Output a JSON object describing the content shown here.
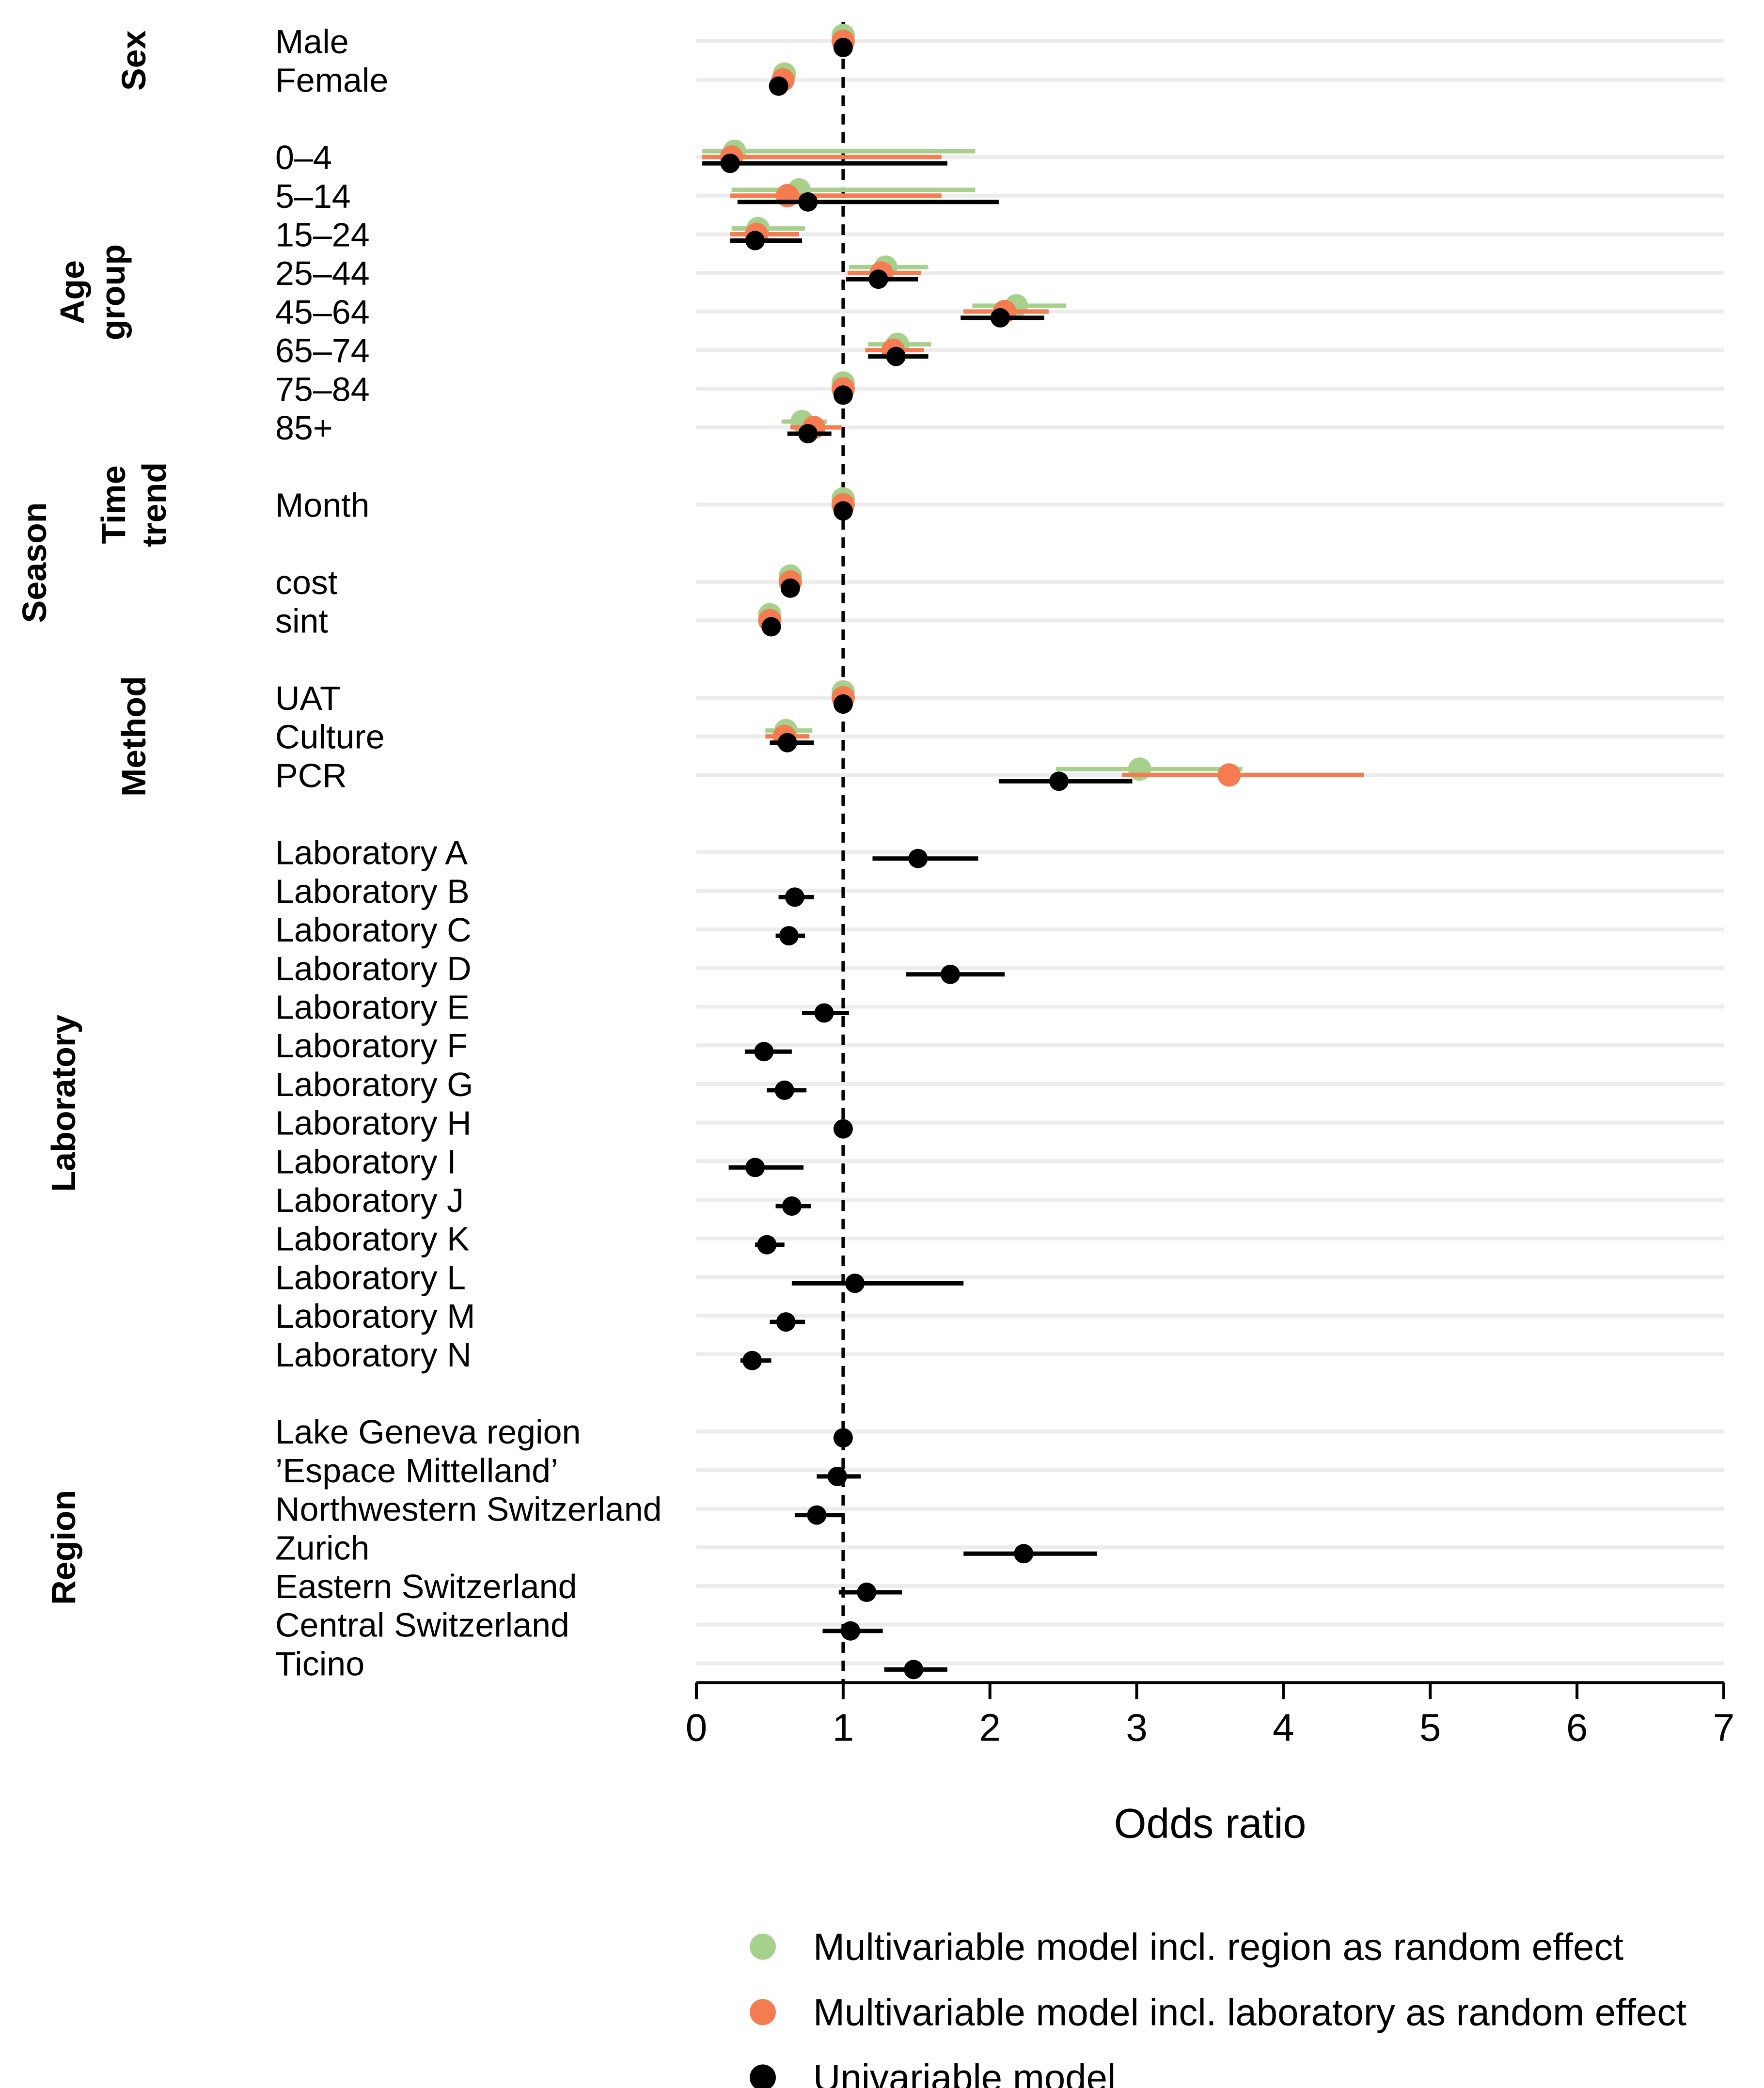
{
  "chart_data": {
    "type": "forest",
    "xlabel": "Odds ratio",
    "xlim": [
      0,
      7
    ],
    "x_ticks": [
      0,
      1,
      2,
      3,
      4,
      5,
      6,
      7
    ],
    "reference_line": 1,
    "grid": "horizontal row lines",
    "legend_position": "bottom",
    "series": [
      {
        "key": "region",
        "name": "Multivariable model incl. region as random effect",
        "color": "#a8d08d"
      },
      {
        "key": "lab",
        "name": "Multivariable model incl. laboratory as random effect",
        "color": "#f47c50"
      },
      {
        "key": "uni",
        "name": "Univariable model",
        "color": "#000000"
      }
    ],
    "groups": [
      {
        "label": "Sex",
        "rows": [
          {
            "label": "Male",
            "region": [
              1.0,
              1.0,
              1.0
            ],
            "lab": [
              1.0,
              1.0,
              1.0
            ],
            "uni": [
              1.0,
              1.0,
              1.0
            ]
          },
          {
            "label": "Female",
            "region": [
              0.6,
              0.56,
              0.64
            ],
            "lab": [
              0.59,
              0.55,
              0.63
            ],
            "uni": [
              0.56,
              0.53,
              0.6
            ]
          }
        ]
      },
      {
        "label": "Age group",
        "rows": [
          {
            "label": "0–4",
            "region": [
              0.26,
              0.04,
              1.9
            ],
            "lab": [
              0.24,
              0.04,
              1.67
            ],
            "uni": [
              0.23,
              0.04,
              1.71
            ]
          },
          {
            "label": "5–14",
            "region": [
              0.7,
              0.24,
              1.9
            ],
            "lab": [
              0.62,
              0.23,
              1.67
            ],
            "uni": [
              0.76,
              0.28,
              2.06
            ]
          },
          {
            "label": "15–24",
            "region": [
              0.42,
              0.24,
              0.74
            ],
            "lab": [
              0.41,
              0.23,
              0.7
            ],
            "uni": [
              0.4,
              0.23,
              0.72
            ]
          },
          {
            "label": "25–44",
            "region": [
              1.29,
              1.04,
              1.58
            ],
            "lab": [
              1.26,
              1.03,
              1.53
            ],
            "uni": [
              1.24,
              1.02,
              1.51
            ]
          },
          {
            "label": "45–64",
            "region": [
              2.18,
              1.88,
              2.52
            ],
            "lab": [
              2.1,
              1.82,
              2.4
            ],
            "uni": [
              2.07,
              1.8,
              2.37
            ]
          },
          {
            "label": "65–74",
            "region": [
              1.37,
              1.17,
              1.6
            ],
            "lab": [
              1.34,
              1.15,
              1.55
            ],
            "uni": [
              1.36,
              1.17,
              1.58
            ]
          },
          {
            "label": "75–84",
            "region": [
              1.0,
              1.0,
              1.0
            ],
            "lab": [
              1.0,
              1.0,
              1.0
            ],
            "uni": [
              1.0,
              1.0,
              1.0
            ]
          },
          {
            "label": "85+",
            "region": [
              0.72,
              0.58,
              0.89
            ],
            "lab": [
              0.8,
              0.64,
              0.99
            ],
            "uni": [
              0.76,
              0.62,
              0.92
            ]
          }
        ]
      },
      {
        "label": "Time trend",
        "rows": [
          {
            "label": "Month",
            "region": [
              1.0,
              1.0,
              1.0
            ],
            "lab": [
              1.0,
              1.0,
              1.0
            ],
            "uni": [
              1.0,
              1.0,
              1.0
            ]
          }
        ]
      },
      {
        "label": "",
        "rows": [
          {
            "label": "cost",
            "region": [
              0.64,
              0.6,
              0.68
            ],
            "lab": [
              0.64,
              0.6,
              0.68
            ],
            "uni": [
              0.64,
              0.6,
              0.68
            ]
          },
          {
            "label": "sint",
            "region": [
              0.5,
              0.47,
              0.54
            ],
            "lab": [
              0.5,
              0.47,
              0.54
            ],
            "uni": [
              0.51,
              0.48,
              0.54
            ]
          }
        ]
      },
      {
        "label": "Method",
        "rows": [
          {
            "label": "UAT",
            "region": [
              1.0,
              1.0,
              1.0
            ],
            "lab": [
              1.0,
              1.0,
              1.0
            ],
            "uni": [
              1.0,
              1.0,
              1.0
            ]
          },
          {
            "label": "Culture",
            "region": [
              0.61,
              0.47,
              0.79
            ],
            "lab": [
              0.6,
              0.47,
              0.77
            ],
            "uni": [
              0.62,
              0.5,
              0.8
            ]
          },
          {
            "label": "PCR",
            "region": [
              3.02,
              2.45,
              3.72
            ],
            "lab": [
              3.63,
              2.9,
              4.55
            ],
            "uni": [
              2.47,
              2.06,
              2.97
            ]
          }
        ]
      },
      {
        "label": "Laboratory",
        "rows": [
          {
            "label": "Laboratory A",
            "uni": [
              1.51,
              1.2,
              1.92
            ]
          },
          {
            "label": "Laboratory B",
            "uni": [
              0.67,
              0.56,
              0.8
            ]
          },
          {
            "label": "Laboratory C",
            "uni": [
              0.63,
              0.54,
              0.74
            ]
          },
          {
            "label": "Laboratory D",
            "uni": [
              1.73,
              1.43,
              2.1
            ]
          },
          {
            "label": "Laboratory E",
            "uni": [
              0.87,
              0.72,
              1.04
            ]
          },
          {
            "label": "Laboratory F",
            "uni": [
              0.46,
              0.33,
              0.65
            ]
          },
          {
            "label": "Laboratory G",
            "uni": [
              0.6,
              0.48,
              0.75
            ]
          },
          {
            "label": "Laboratory H",
            "uni": [
              1.0,
              1.0,
              1.0
            ]
          },
          {
            "label": "Laboratory I",
            "uni": [
              0.4,
              0.22,
              0.73
            ]
          },
          {
            "label": "Laboratory J",
            "uni": [
              0.65,
              0.54,
              0.78
            ]
          },
          {
            "label": "Laboratory K",
            "uni": [
              0.48,
              0.4,
              0.6
            ]
          },
          {
            "label": "Laboratory L",
            "uni": [
              1.08,
              0.65,
              1.82
            ]
          },
          {
            "label": "Laboratory M",
            "uni": [
              0.61,
              0.5,
              0.74
            ]
          },
          {
            "label": "Laboratory N",
            "uni": [
              0.38,
              0.3,
              0.51
            ]
          }
        ]
      },
      {
        "label": "Region",
        "rows": [
          {
            "label": "Lake Geneva region",
            "uni": [
              1.0,
              1.0,
              1.0
            ]
          },
          {
            "label": "’Espace Mittelland’",
            "uni": [
              0.96,
              0.82,
              1.12
            ]
          },
          {
            "label": "Northwestern Switzerland",
            "uni": [
              0.82,
              0.67,
              1.0
            ]
          },
          {
            "label": "Zurich",
            "uni": [
              2.23,
              1.82,
              2.73
            ]
          },
          {
            "label": "Eastern Switzerland",
            "uni": [
              1.16,
              0.97,
              1.4
            ]
          },
          {
            "label": "Central Switzerland",
            "uni": [
              1.05,
              0.86,
              1.27
            ]
          },
          {
            "label": "Ticino",
            "uni": [
              1.48,
              1.28,
              1.71
            ]
          }
        ]
      }
    ],
    "outer_labels": [
      "Season"
    ]
  }
}
